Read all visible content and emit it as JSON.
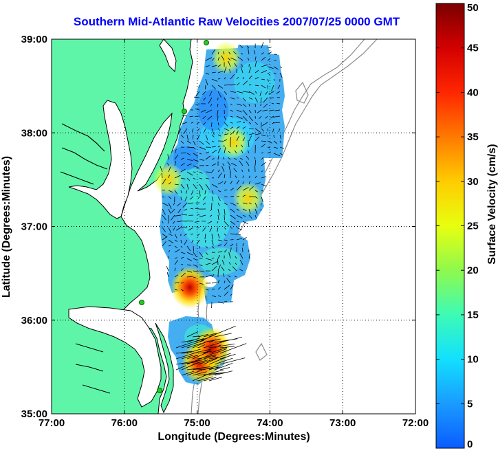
{
  "title": "Southern Mid-Atlantic Raw Velocities 2007/07/25 0000 GMT",
  "map": {
    "xlabel": "Longitude (Degrees:Minutes)",
    "ylabel": "Latitude (Degrees:Minutes)",
    "lon_range": [
      -77,
      -72
    ],
    "lat_range": [
      35,
      39
    ],
    "lon_ticks": [
      {
        "value": -77,
        "label": "77:00"
      },
      {
        "value": -76,
        "label": "76:00"
      },
      {
        "value": -75,
        "label": "75:00"
      },
      {
        "value": -74,
        "label": "74:00"
      },
      {
        "value": -73,
        "label": "73:00"
      },
      {
        "value": -72,
        "label": "72:00"
      }
    ],
    "lat_ticks": [
      {
        "value": 35,
        "label": "35:00"
      },
      {
        "value": 36,
        "label": "36:00"
      },
      {
        "value": 37,
        "label": "37:00"
      },
      {
        "value": 38,
        "label": "38:00"
      },
      {
        "value": 39,
        "label": "39:00"
      }
    ],
    "grid": "dotted",
    "land_color": "#5ff5a8",
    "coast_color": "#000000",
    "bathymetry_color": "#8a8a8a",
    "station_color": "#22cc22",
    "hot_spots": [
      {
        "lon": -75.1,
        "lat": 36.35,
        "speed": 40
      },
      {
        "lon": -74.95,
        "lat": 35.55,
        "speed": 45
      },
      {
        "lon": -74.8,
        "lat": 35.7,
        "speed": 35
      },
      {
        "lon": -75.4,
        "lat": 37.5,
        "speed": 28
      },
      {
        "lon": -74.3,
        "lat": 37.3,
        "speed": 27
      },
      {
        "lon": -74.5,
        "lat": 37.9,
        "speed": 26
      },
      {
        "lon": -74.6,
        "lat": 38.8,
        "speed": 22
      }
    ]
  },
  "colorbar": {
    "label": "Surface Velocity (cm/s)",
    "min": 0,
    "max": 50,
    "ticks": [
      {
        "value": 0,
        "label": "0"
      },
      {
        "value": 5,
        "label": "5"
      },
      {
        "value": 10,
        "label": "10"
      },
      {
        "value": 15,
        "label": "15"
      },
      {
        "value": 20,
        "label": "20"
      },
      {
        "value": 25,
        "label": "25"
      },
      {
        "value": 30,
        "label": "30"
      },
      {
        "value": 35,
        "label": "35"
      },
      {
        "value": 40,
        "label": "40"
      },
      {
        "value": 45,
        "label": "45"
      },
      {
        "value": 50,
        "label": "50"
      }
    ]
  }
}
